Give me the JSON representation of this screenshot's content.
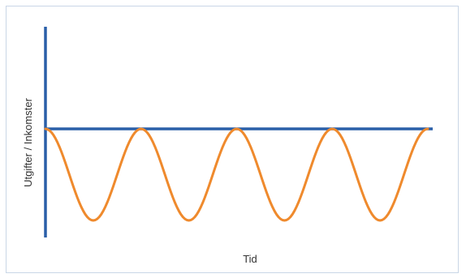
{
  "chart_data": {
    "type": "line",
    "title": "",
    "xlabel": "Tid",
    "ylabel": "Utgifter / Inkomster",
    "axes_colors": {
      "axis": "#2a5fa8",
      "series": "#ef8a2d"
    },
    "series": [
      {
        "color": "#ef8a2d",
        "x": [
          0,
          0.5,
          1,
          1.5,
          2,
          2.5,
          3,
          3.5,
          4
        ],
        "y": [
          0,
          -1,
          0,
          -1,
          0,
          -1,
          0,
          -1,
          0
        ]
      }
    ],
    "xlim": [
      0,
      4
    ],
    "ylim": [
      -1.2,
      1.1
    ],
    "grid": false,
    "legend": "none"
  }
}
